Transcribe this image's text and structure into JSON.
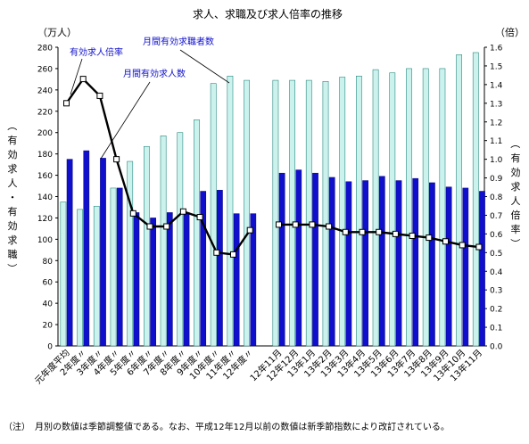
{
  "chart_data": {
    "type": "bar",
    "title": "求人、求職及び求人倍率の推移",
    "left_axis": {
      "unit": "（万人）",
      "label": "（有効求人・有効求職）",
      "ylim": [
        0,
        280
      ],
      "ticks": [
        0,
        20,
        40,
        60,
        80,
        100,
        120,
        140,
        160,
        180,
        200,
        220,
        240,
        260,
        280
      ]
    },
    "right_axis": {
      "unit": "（倍）",
      "label": "（有効求人倍率）",
      "ylim": [
        0,
        1.6
      ],
      "ticks": [
        "0.0",
        "0.1",
        "0.2",
        "0.3",
        "0.4",
        "0.5",
        "0.6",
        "0.7",
        "0.8",
        "0.9",
        "1.0",
        "1.1",
        "1.2",
        "1.3",
        "1.4",
        "1.5",
        "1.6"
      ]
    },
    "groups": [
      {
        "categories": [
          "元年度平均",
          "2年度〃",
          "3年度〃",
          "4年度〃",
          "5年度〃",
          "6年度〃",
          "7年度〃",
          "8年度〃",
          "9年度〃",
          "10年度〃",
          "11年度〃",
          "12年度〃"
        ],
        "applicants": [
          135,
          128,
          131,
          148,
          173,
          187,
          197,
          200,
          212,
          246,
          253,
          249
        ],
        "openings": [
          175,
          183,
          176,
          148,
          125,
          120,
          125,
          125,
          145,
          146,
          124,
          124
        ],
        "ratio": [
          1.3,
          1.43,
          1.34,
          1.0,
          0.71,
          0.64,
          0.64,
          0.72,
          0.69,
          0.5,
          0.49,
          0.62
        ]
      },
      {
        "categories": [
          "12年11月",
          "12年12月",
          "13年1月",
          "13年2月",
          "13年3月",
          "13年4月",
          "13年5月",
          "13年6月",
          "13年7月",
          "13年8月",
          "13年9月",
          "13年10月",
          "13年11月"
        ],
        "applicants": [
          249,
          249,
          249,
          248,
          252,
          253,
          259,
          256,
          260,
          260,
          260,
          273,
          275
        ],
        "openings": [
          162,
          165,
          162,
          158,
          154,
          155,
          159,
          155,
          157,
          153,
          149,
          148,
          145
        ],
        "ratio": [
          0.65,
          0.65,
          0.65,
          0.64,
          0.61,
          0.61,
          0.61,
          0.6,
          0.59,
          0.58,
          0.56,
          0.54,
          0.53
        ]
      }
    ],
    "series": [
      {
        "name": "月間有効求職者数",
        "color": "#ccf2ee"
      },
      {
        "name": "月間有効求人数",
        "color": "#1010cc"
      },
      {
        "name": "有効求人倍率",
        "color": "#000000"
      }
    ]
  },
  "labels": {
    "callout_ratio": "有効求人倍率",
    "callout_applicants": "月間有効求職者数",
    "callout_openings": "月間有効求人数"
  },
  "footnote": "（注）　月別の数値は季節調整値である。なお、平成12年12月以前の数値は新季節指数により改訂されている。"
}
